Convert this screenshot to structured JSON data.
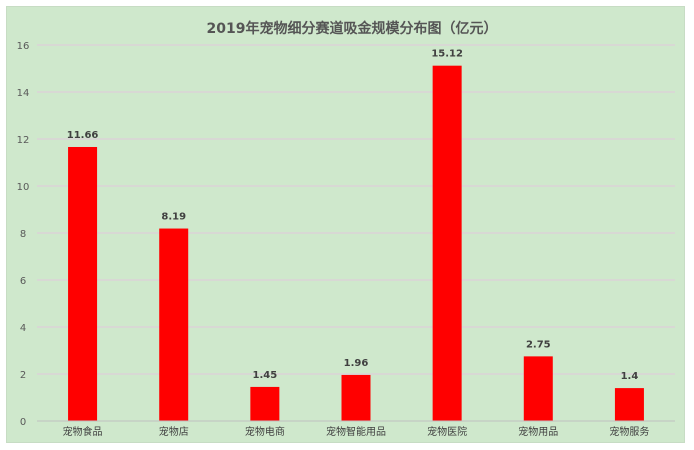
{
  "chart_data": {
    "type": "bar",
    "title": "2019年宠物细分赛道吸金规模分布图（亿元）",
    "categories": [
      "宠物食品",
      "宠物店",
      "宠物电商",
      "宠物智能用品",
      "宠物医院",
      "宠物用品",
      "宠物服务"
    ],
    "values": [
      11.66,
      8.19,
      1.45,
      1.96,
      15.12,
      2.75,
      1.4
    ],
    "value_labels": [
      "11.66",
      "8.19",
      "1.45",
      "1.96",
      "15.12",
      "2.75",
      "1.4"
    ],
    "xlabel": "",
    "ylabel": "",
    "ylim": [
      0,
      16
    ],
    "yticks": [
      0,
      2,
      4,
      6,
      8,
      10,
      12,
      14,
      16
    ],
    "grid": true,
    "legend": "none",
    "colors": {
      "bar": "#ff0000",
      "background": "#cfe8cc",
      "grid": "#e2c9dc"
    }
  }
}
